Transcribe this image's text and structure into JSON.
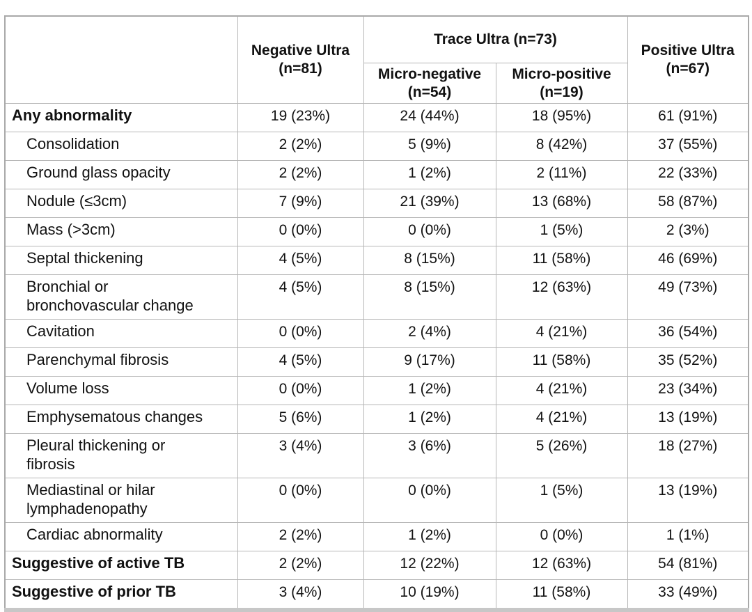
{
  "table": {
    "header": {
      "corner_label": "",
      "group_label": "Trace Ultra (n=73)",
      "columns": [
        {
          "title": "Negative Ultra",
          "n": "(n=81)"
        },
        {
          "title": "Micro-negative",
          "n": "(n=54)"
        },
        {
          "title": "Micro-positive",
          "n": "(n=19)"
        },
        {
          "title": "Positive Ultra",
          "n": "(n=67)"
        }
      ]
    },
    "rows": [
      {
        "label": "Any abnormality",
        "style": "bold",
        "values": [
          "19 (23%)",
          "24 (44%)",
          "18 (95%)",
          "61 (91%)"
        ]
      },
      {
        "label": "Consolidation",
        "style": "indent",
        "values": [
          "2 (2%)",
          "5 (9%)",
          "8 (42%)",
          "37 (55%)"
        ]
      },
      {
        "label": "Ground glass opacity",
        "style": "indent",
        "values": [
          "2 (2%)",
          "1 (2%)",
          "2 (11%)",
          "22 (33%)"
        ]
      },
      {
        "label": "Nodule (≤3cm)",
        "style": "indent",
        "values": [
          "7 (9%)",
          "21 (39%)",
          "13 (68%)",
          "58 (87%)"
        ]
      },
      {
        "label": "Mass (>3cm)",
        "style": "indent",
        "values": [
          "0 (0%)",
          "0 (0%)",
          "1 (5%)",
          "2 (3%)"
        ]
      },
      {
        "label": "Septal thickening",
        "style": "indent",
        "values": [
          "4 (5%)",
          "8 (15%)",
          "11 (58%)",
          "46 (69%)"
        ]
      },
      {
        "label": "Bronchial or\nbronchovascular change",
        "style": "indent",
        "tall": true,
        "values": [
          "4 (5%)",
          "8 (15%)",
          "12 (63%)",
          "49 (73%)"
        ]
      },
      {
        "label": "Cavitation",
        "style": "indent",
        "values": [
          "0 (0%)",
          "2 (4%)",
          "4 (21%)",
          "36 (54%)"
        ]
      },
      {
        "label": "Parenchymal fibrosis",
        "style": "indent",
        "values": [
          "4 (5%)",
          "9 (17%)",
          "11 (58%)",
          "35 (52%)"
        ]
      },
      {
        "label": "Volume loss",
        "style": "indent",
        "values": [
          "0 (0%)",
          "1 (2%)",
          "4 (21%)",
          "23 (34%)"
        ]
      },
      {
        "label": "Emphysematous changes",
        "style": "indent",
        "values": [
          "5 (6%)",
          "1 (2%)",
          "4 (21%)",
          "13 (19%)"
        ]
      },
      {
        "label": "Pleural thickening or\nfibrosis",
        "style": "indent",
        "tall": true,
        "values": [
          "3 (4%)",
          "3 (6%)",
          "5 (26%)",
          "18 (27%)"
        ]
      },
      {
        "label": "Mediastinal or hilar\nlymphadenopathy",
        "style": "indent",
        "tall": true,
        "values": [
          "0 (0%)",
          "0 (0%)",
          "1 (5%)",
          "13 (19%)"
        ]
      },
      {
        "label": "Cardiac abnormality",
        "style": "indent",
        "values": [
          "2 (2%)",
          "1 (2%)",
          "0 (0%)",
          "1 (1%)"
        ]
      },
      {
        "label": "Suggestive of active TB",
        "style": "bold",
        "values": [
          "2 (2%)",
          "12 (22%)",
          "12 (63%)",
          "54 (81%)"
        ]
      },
      {
        "label": "Suggestive of prior TB",
        "style": "bold",
        "values": [
          "3 (4%)",
          "10 (19%)",
          "11 (58%)",
          "33 (49%)"
        ]
      }
    ],
    "colors": {
      "border_outer": "#a9a9a9",
      "border_inner": "#b6b6b6",
      "border_bottom_band": "#c7c7c7",
      "text": "#111111",
      "background": "#ffffff"
    }
  }
}
